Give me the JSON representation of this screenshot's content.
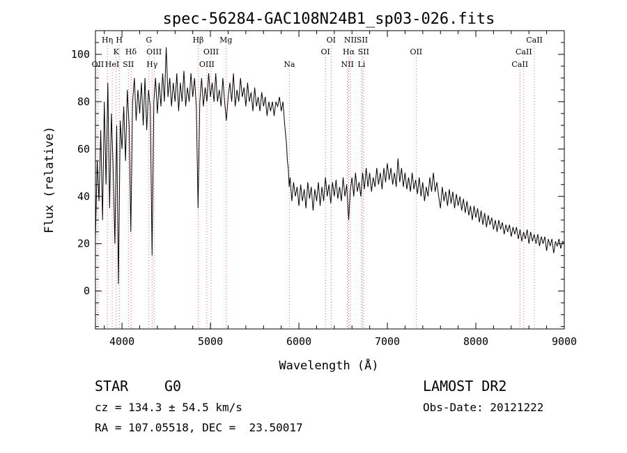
{
  "chart_data": {
    "type": "line",
    "title": "spec-56284-GAC108N24B1_sp03-026.fits",
    "xlabel": "Wavelength (Å)",
    "ylabel": "Flux (relative)",
    "xlim": [
      3700,
      9000
    ],
    "ylim": [
      -16,
      110
    ],
    "x_ticks": [
      4000,
      5000,
      6000,
      7000,
      8000,
      9000
    ],
    "y_ticks": [
      0,
      20,
      40,
      60,
      80,
      100
    ],
    "grid": false,
    "series": [
      {
        "points": [
          [
            3700,
            22
          ],
          [
            3720,
            55
          ],
          [
            3740,
            38
          ],
          [
            3760,
            68
          ],
          [
            3780,
            30
          ],
          [
            3800,
            80
          ],
          [
            3820,
            45
          ],
          [
            3840,
            88
          ],
          [
            3860,
            35
          ],
          [
            3880,
            75
          ],
          [
            3900,
            52
          ],
          [
            3920,
            20
          ],
          [
            3940,
            70
          ],
          [
            3960,
            3
          ],
          [
            3980,
            72
          ],
          [
            4000,
            60
          ],
          [
            4020,
            78
          ],
          [
            4040,
            55
          ],
          [
            4060,
            85
          ],
          [
            4080,
            70
          ],
          [
            4100,
            25
          ],
          [
            4120,
            80
          ],
          [
            4140,
            90
          ],
          [
            4160,
            72
          ],
          [
            4180,
            85
          ],
          [
            4200,
            75
          ],
          [
            4220,
            88
          ],
          [
            4240,
            70
          ],
          [
            4260,
            90
          ],
          [
            4280,
            68
          ],
          [
            4300,
            85
          ],
          [
            4320,
            78
          ],
          [
            4340,
            15
          ],
          [
            4360,
            80
          ],
          [
            4380,
            90
          ],
          [
            4400,
            75
          ],
          [
            4420,
            88
          ],
          [
            4440,
            78
          ],
          [
            4460,
            92
          ],
          [
            4480,
            80
          ],
          [
            4500,
            103
          ],
          [
            4520,
            82
          ],
          [
            4540,
            90
          ],
          [
            4560,
            78
          ],
          [
            4580,
            88
          ],
          [
            4600,
            80
          ],
          [
            4620,
            92
          ],
          [
            4640,
            76
          ],
          [
            4660,
            88
          ],
          [
            4680,
            80
          ],
          [
            4700,
            93
          ],
          [
            4720,
            78
          ],
          [
            4740,
            86
          ],
          [
            4760,
            80
          ],
          [
            4780,
            92
          ],
          [
            4800,
            82
          ],
          [
            4820,
            90
          ],
          [
            4840,
            78
          ],
          [
            4860,
            35
          ],
          [
            4870,
            58
          ],
          [
            4880,
            80
          ],
          [
            4900,
            90
          ],
          [
            4920,
            78
          ],
          [
            4940,
            86
          ],
          [
            4960,
            80
          ],
          [
            4980,
            92
          ],
          [
            5000,
            82
          ],
          [
            5020,
            88
          ],
          [
            5040,
            80
          ],
          [
            5060,
            92
          ],
          [
            5080,
            80
          ],
          [
            5100,
            85
          ],
          [
            5120,
            78
          ],
          [
            5140,
            90
          ],
          [
            5160,
            80
          ],
          [
            5180,
            72
          ],
          [
            5200,
            82
          ],
          [
            5220,
            88
          ],
          [
            5240,
            80
          ],
          [
            5260,
            92
          ],
          [
            5280,
            78
          ],
          [
            5300,
            85
          ],
          [
            5320,
            80
          ],
          [
            5340,
            90
          ],
          [
            5360,
            82
          ],
          [
            5380,
            86
          ],
          [
            5400,
            78
          ],
          [
            5420,
            88
          ],
          [
            5440,
            80
          ],
          [
            5460,
            84
          ],
          [
            5480,
            76
          ],
          [
            5500,
            86
          ],
          [
            5520,
            78
          ],
          [
            5540,
            82
          ],
          [
            5560,
            76
          ],
          [
            5580,
            84
          ],
          [
            5600,
            78
          ],
          [
            5620,
            82
          ],
          [
            5640,
            74
          ],
          [
            5660,
            80
          ],
          [
            5680,
            76
          ],
          [
            5700,
            80
          ],
          [
            5720,
            74
          ],
          [
            5740,
            80
          ],
          [
            5760,
            78
          ],
          [
            5780,
            82
          ],
          [
            5800,
            76
          ],
          [
            5820,
            80
          ],
          [
            5840,
            70
          ],
          [
            5860,
            62
          ],
          [
            5870,
            55
          ],
          [
            5880,
            52
          ],
          [
            5890,
            44
          ],
          [
            5900,
            48
          ],
          [
            5920,
            38
          ],
          [
            5940,
            46
          ],
          [
            5960,
            40
          ],
          [
            5980,
            44
          ],
          [
            6000,
            36
          ],
          [
            6020,
            45
          ],
          [
            6040,
            38
          ],
          [
            6060,
            43
          ],
          [
            6080,
            35
          ],
          [
            6100,
            46
          ],
          [
            6120,
            39
          ],
          [
            6140,
            44
          ],
          [
            6160,
            34
          ],
          [
            6180,
            43
          ],
          [
            6200,
            38
          ],
          [
            6220,
            46
          ],
          [
            6240,
            36
          ],
          [
            6260,
            44
          ],
          [
            6280,
            38
          ],
          [
            6300,
            48
          ],
          [
            6320,
            40
          ],
          [
            6340,
            45
          ],
          [
            6360,
            37
          ],
          [
            6380,
            46
          ],
          [
            6400,
            40
          ],
          [
            6420,
            47
          ],
          [
            6440,
            39
          ],
          [
            6460,
            44
          ],
          [
            6480,
            38
          ],
          [
            6500,
            48
          ],
          [
            6520,
            40
          ],
          [
            6540,
            45
          ],
          [
            6563,
            30
          ],
          [
            6580,
            42
          ],
          [
            6600,
            48
          ],
          [
            6620,
            40
          ],
          [
            6640,
            50
          ],
          [
            6660,
            42
          ],
          [
            6680,
            46
          ],
          [
            6700,
            40
          ],
          [
            6720,
            50
          ],
          [
            6740,
            43
          ],
          [
            6760,
            52
          ],
          [
            6780,
            44
          ],
          [
            6800,
            50
          ],
          [
            6820,
            42
          ],
          [
            6840,
            48
          ],
          [
            6860,
            44
          ],
          [
            6880,
            52
          ],
          [
            6900,
            45
          ],
          [
            6920,
            50
          ],
          [
            6940,
            43
          ],
          [
            6960,
            52
          ],
          [
            6980,
            46
          ],
          [
            7000,
            54
          ],
          [
            7020,
            47
          ],
          [
            7040,
            52
          ],
          [
            7060,
            45
          ],
          [
            7080,
            50
          ],
          [
            7100,
            44
          ],
          [
            7120,
            56
          ],
          [
            7140,
            46
          ],
          [
            7160,
            52
          ],
          [
            7180,
            44
          ],
          [
            7200,
            50
          ],
          [
            7220,
            43
          ],
          [
            7240,
            48
          ],
          [
            7260,
            42
          ],
          [
            7280,
            50
          ],
          [
            7300,
            43
          ],
          [
            7320,
            47
          ],
          [
            7340,
            41
          ],
          [
            7360,
            48
          ],
          [
            7380,
            40
          ],
          [
            7400,
            46
          ],
          [
            7420,
            38
          ],
          [
            7440,
            44
          ],
          [
            7460,
            40
          ],
          [
            7480,
            48
          ],
          [
            7500,
            42
          ],
          [
            7520,
            50
          ],
          [
            7540,
            42
          ],
          [
            7560,
            46
          ],
          [
            7580,
            40
          ],
          [
            7600,
            35
          ],
          [
            7620,
            44
          ],
          [
            7640,
            38
          ],
          [
            7660,
            42
          ],
          [
            7680,
            36
          ],
          [
            7700,
            43
          ],
          [
            7720,
            37
          ],
          [
            7740,
            42
          ],
          [
            7760,
            35
          ],
          [
            7780,
            41
          ],
          [
            7800,
            36
          ],
          [
            7820,
            40
          ],
          [
            7840,
            34
          ],
          [
            7860,
            39
          ],
          [
            7880,
            33
          ],
          [
            7900,
            38
          ],
          [
            7920,
            32
          ],
          [
            7940,
            36
          ],
          [
            7960,
            30
          ],
          [
            7980,
            36
          ],
          [
            8000,
            31
          ],
          [
            8020,
            35
          ],
          [
            8040,
            29
          ],
          [
            8060,
            34
          ],
          [
            8080,
            28
          ],
          [
            8100,
            33
          ],
          [
            8120,
            27
          ],
          [
            8140,
            32
          ],
          [
            8160,
            28
          ],
          [
            8180,
            31
          ],
          [
            8200,
            26
          ],
          [
            8220,
            30
          ],
          [
            8240,
            25
          ],
          [
            8260,
            30
          ],
          [
            8280,
            26
          ],
          [
            8300,
            29
          ],
          [
            8320,
            24
          ],
          [
            8340,
            28
          ],
          [
            8360,
            25
          ],
          [
            8380,
            28
          ],
          [
            8400,
            23
          ],
          [
            8420,
            27
          ],
          [
            8440,
            24
          ],
          [
            8460,
            27
          ],
          [
            8480,
            22
          ],
          [
            8500,
            26
          ],
          [
            8520,
            21
          ],
          [
            8540,
            25
          ],
          [
            8560,
            22
          ],
          [
            8580,
            26
          ],
          [
            8600,
            20
          ],
          [
            8620,
            25
          ],
          [
            8640,
            21
          ],
          [
            8660,
            24
          ],
          [
            8680,
            20
          ],
          [
            8700,
            24
          ],
          [
            8720,
            19
          ],
          [
            8740,
            23
          ],
          [
            8760,
            20
          ],
          [
            8780,
            23
          ],
          [
            8800,
            17
          ],
          [
            8820,
            22
          ],
          [
            8840,
            19
          ],
          [
            8860,
            22
          ],
          [
            8880,
            16
          ],
          [
            8900,
            21
          ],
          [
            8920,
            19
          ],
          [
            8940,
            22
          ],
          [
            8960,
            18
          ],
          [
            8980,
            21
          ],
          [
            9000,
            20
          ]
        ]
      }
    ],
    "line_markers": [
      {
        "label": "OII",
        "wl": 3727,
        "row": 3
      },
      {
        "label": "Hη",
        "wl": 3835,
        "row": 1
      },
      {
        "label": "HeI",
        "wl": 3889,
        "row": 3
      },
      {
        "label": "K",
        "wl": 3934,
        "row": 2
      },
      {
        "label": "H",
        "wl": 3969,
        "row": 1
      },
      {
        "label": "SII",
        "wl": 4072,
        "row": 3
      },
      {
        "label": "Hδ",
        "wl": 4102,
        "row": 2
      },
      {
        "label": "G",
        "wl": 4305,
        "row": 1
      },
      {
        "label": "Hγ",
        "wl": 4340,
        "row": 3
      },
      {
        "label": "OIII",
        "wl": 4363,
        "row": 2
      },
      {
        "label": "Hβ",
        "wl": 4861,
        "row": 1
      },
      {
        "label": "OIII",
        "wl": 4959,
        "row": 3
      },
      {
        "label": "OIII",
        "wl": 5007,
        "row": 2
      },
      {
        "label": "Mg",
        "wl": 5175,
        "row": 1
      },
      {
        "label": "Na",
        "wl": 5893,
        "row": 3
      },
      {
        "label": "OI",
        "wl": 6300,
        "row": 2
      },
      {
        "label": "OI",
        "wl": 6364,
        "row": 1
      },
      {
        "label": "NII",
        "wl": 6548,
        "row": 3
      },
      {
        "label": "Hα",
        "wl": 6563,
        "row": 2
      },
      {
        "label": "NII",
        "wl": 6583,
        "row": 1
      },
      {
        "label": "SII",
        "wl": 6716,
        "row": 1
      },
      {
        "label": "Li",
        "wl": 6708,
        "row": 3
      },
      {
        "label": "SII",
        "wl": 6731,
        "row": 2
      },
      {
        "label": "OII",
        "wl": 7325,
        "row": 2
      },
      {
        "label": "CaII",
        "wl": 8498,
        "row": 3
      },
      {
        "label": "CaII",
        "wl": 8542,
        "row": 2
      },
      {
        "label": "CaII",
        "wl": 8662,
        "row": 1
      }
    ]
  },
  "info": {
    "object_class": "STAR",
    "subclass": "G0",
    "survey": "LAMOST DR2",
    "cz": "cz = 134.3 ± 54.5 km/s",
    "obs_date": "Obs-Date: 20121222",
    "coords": "RA = 107.05518, DEC =  23.50017"
  }
}
